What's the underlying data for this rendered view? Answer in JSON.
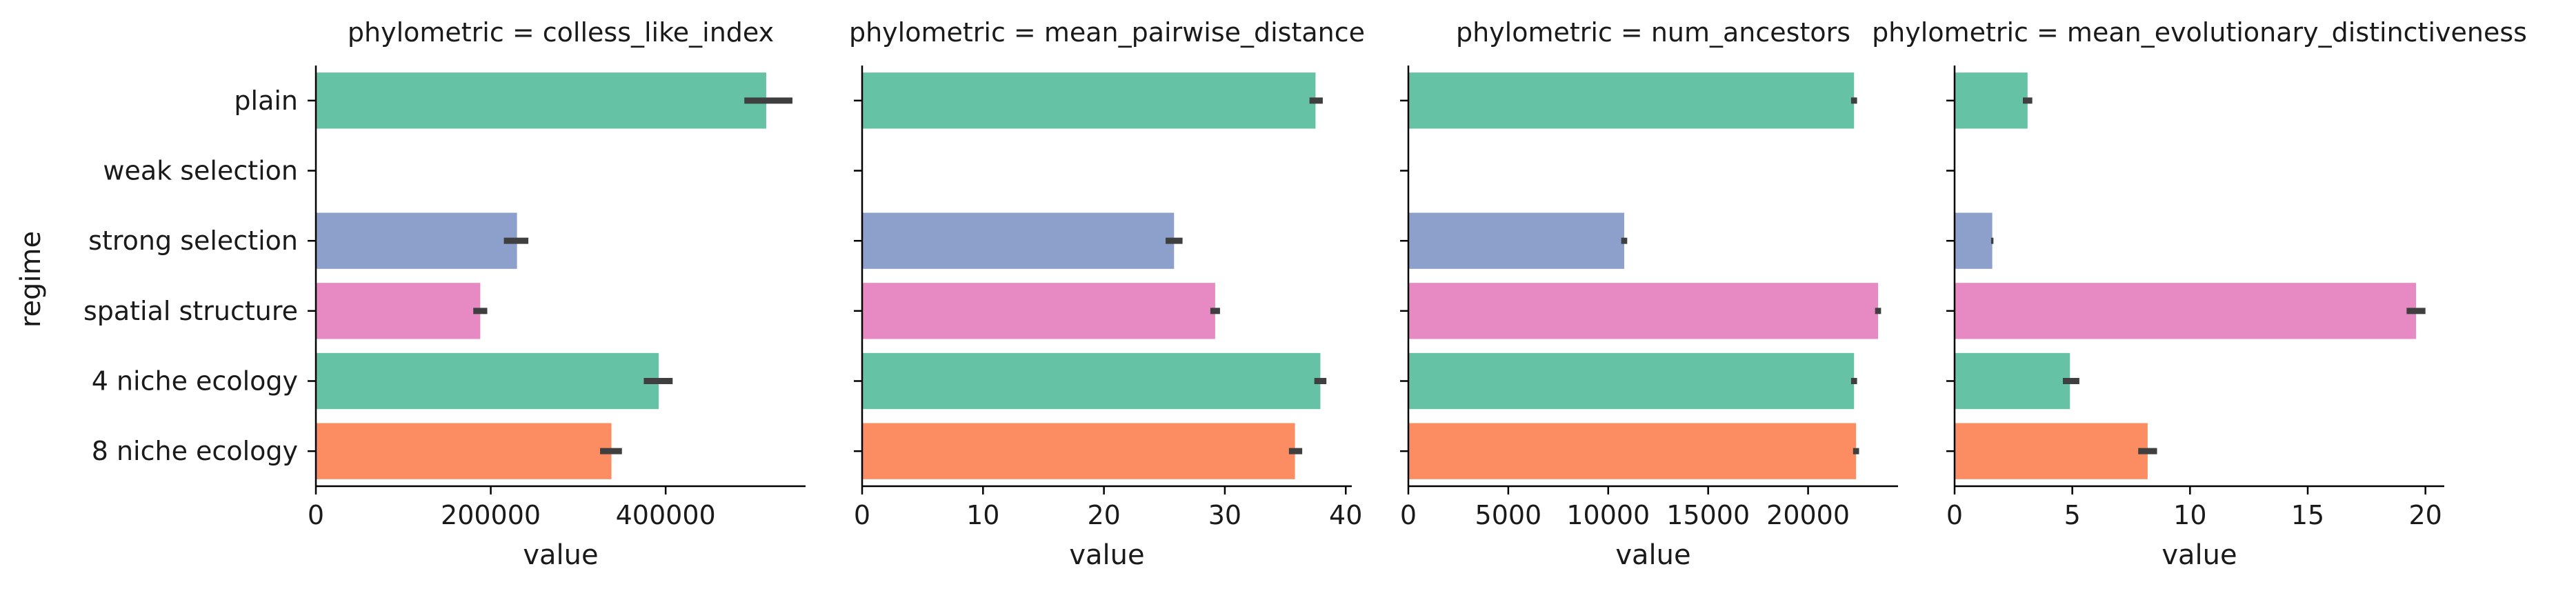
{
  "chart_data": {
    "type": "bar",
    "orientation": "horizontal",
    "y_label": "regime",
    "categories": [
      "plain",
      "weak selection",
      "strong selection",
      "spatial structure",
      "4 niche ecology",
      "8 niche ecology"
    ],
    "colors": [
      "#66c2a5",
      "#fc8d62",
      "#8da0cb",
      "#e78ac3",
      "#66c2a5",
      "#fc8d62"
    ],
    "error_bar_color": "#3f3f3f",
    "grid": false,
    "panels": [
      {
        "title": "phylometric = colless_like_index",
        "xlabel": "value",
        "xlim": [
          0,
          560000
        ],
        "xticks": [
          0,
          200000,
          400000
        ],
        "xtick_labels": [
          "0",
          "200000",
          "400000"
        ],
        "values": [
          515000,
          null,
          230000,
          188000,
          392000,
          338000
        ],
        "errors": [
          [
            490000,
            545000
          ],
          null,
          [
            215000,
            243000
          ],
          [
            180000,
            196000
          ],
          [
            375000,
            408000
          ],
          [
            325000,
            350000
          ]
        ]
      },
      {
        "title": "phylometric = mean_pairwise_distance",
        "xlabel": "value",
        "xlim": [
          0,
          40.5
        ],
        "xticks": [
          0,
          10,
          20,
          30,
          40
        ],
        "xtick_labels": [
          "0",
          "10",
          "20",
          "30",
          "40"
        ],
        "values": [
          37.5,
          null,
          25.8,
          29.2,
          37.9,
          35.8
        ],
        "errors": [
          [
            37.0,
            38.1
          ],
          null,
          [
            25.1,
            26.5
          ],
          [
            28.8,
            29.6
          ],
          [
            37.4,
            38.4
          ],
          [
            35.3,
            36.4
          ]
        ]
      },
      {
        "title": "phylometric = num_ancestors",
        "xlabel": "value",
        "xlim": [
          0,
          24500
        ],
        "xticks": [
          0,
          5000,
          10000,
          15000,
          20000
        ],
        "xtick_labels": [
          "0",
          "5000",
          "10000",
          "15000",
          "20000"
        ],
        "values": [
          22300,
          null,
          10800,
          23500,
          22300,
          22400
        ],
        "errors": [
          [
            22150,
            22450
          ],
          null,
          [
            10650,
            10950
          ],
          [
            23350,
            23650
          ],
          [
            22150,
            22450
          ],
          [
            22250,
            22550
          ]
        ]
      },
      {
        "title": "phylometric = mean_evolutionary_distinctiveness",
        "xlabel": "value",
        "xlim": [
          0,
          20.8
        ],
        "xticks": [
          0,
          5,
          10,
          15,
          20
        ],
        "xtick_labels": [
          "0",
          "5",
          "10",
          "15",
          "20"
        ],
        "values": [
          3.1,
          null,
          1.6,
          19.6,
          4.9,
          8.2
        ],
        "errors": [
          [
            2.9,
            3.3
          ],
          null,
          [
            1.55,
            1.65
          ],
          [
            19.2,
            20.0
          ],
          [
            4.6,
            5.3
          ],
          [
            7.8,
            8.6
          ]
        ]
      }
    ]
  }
}
